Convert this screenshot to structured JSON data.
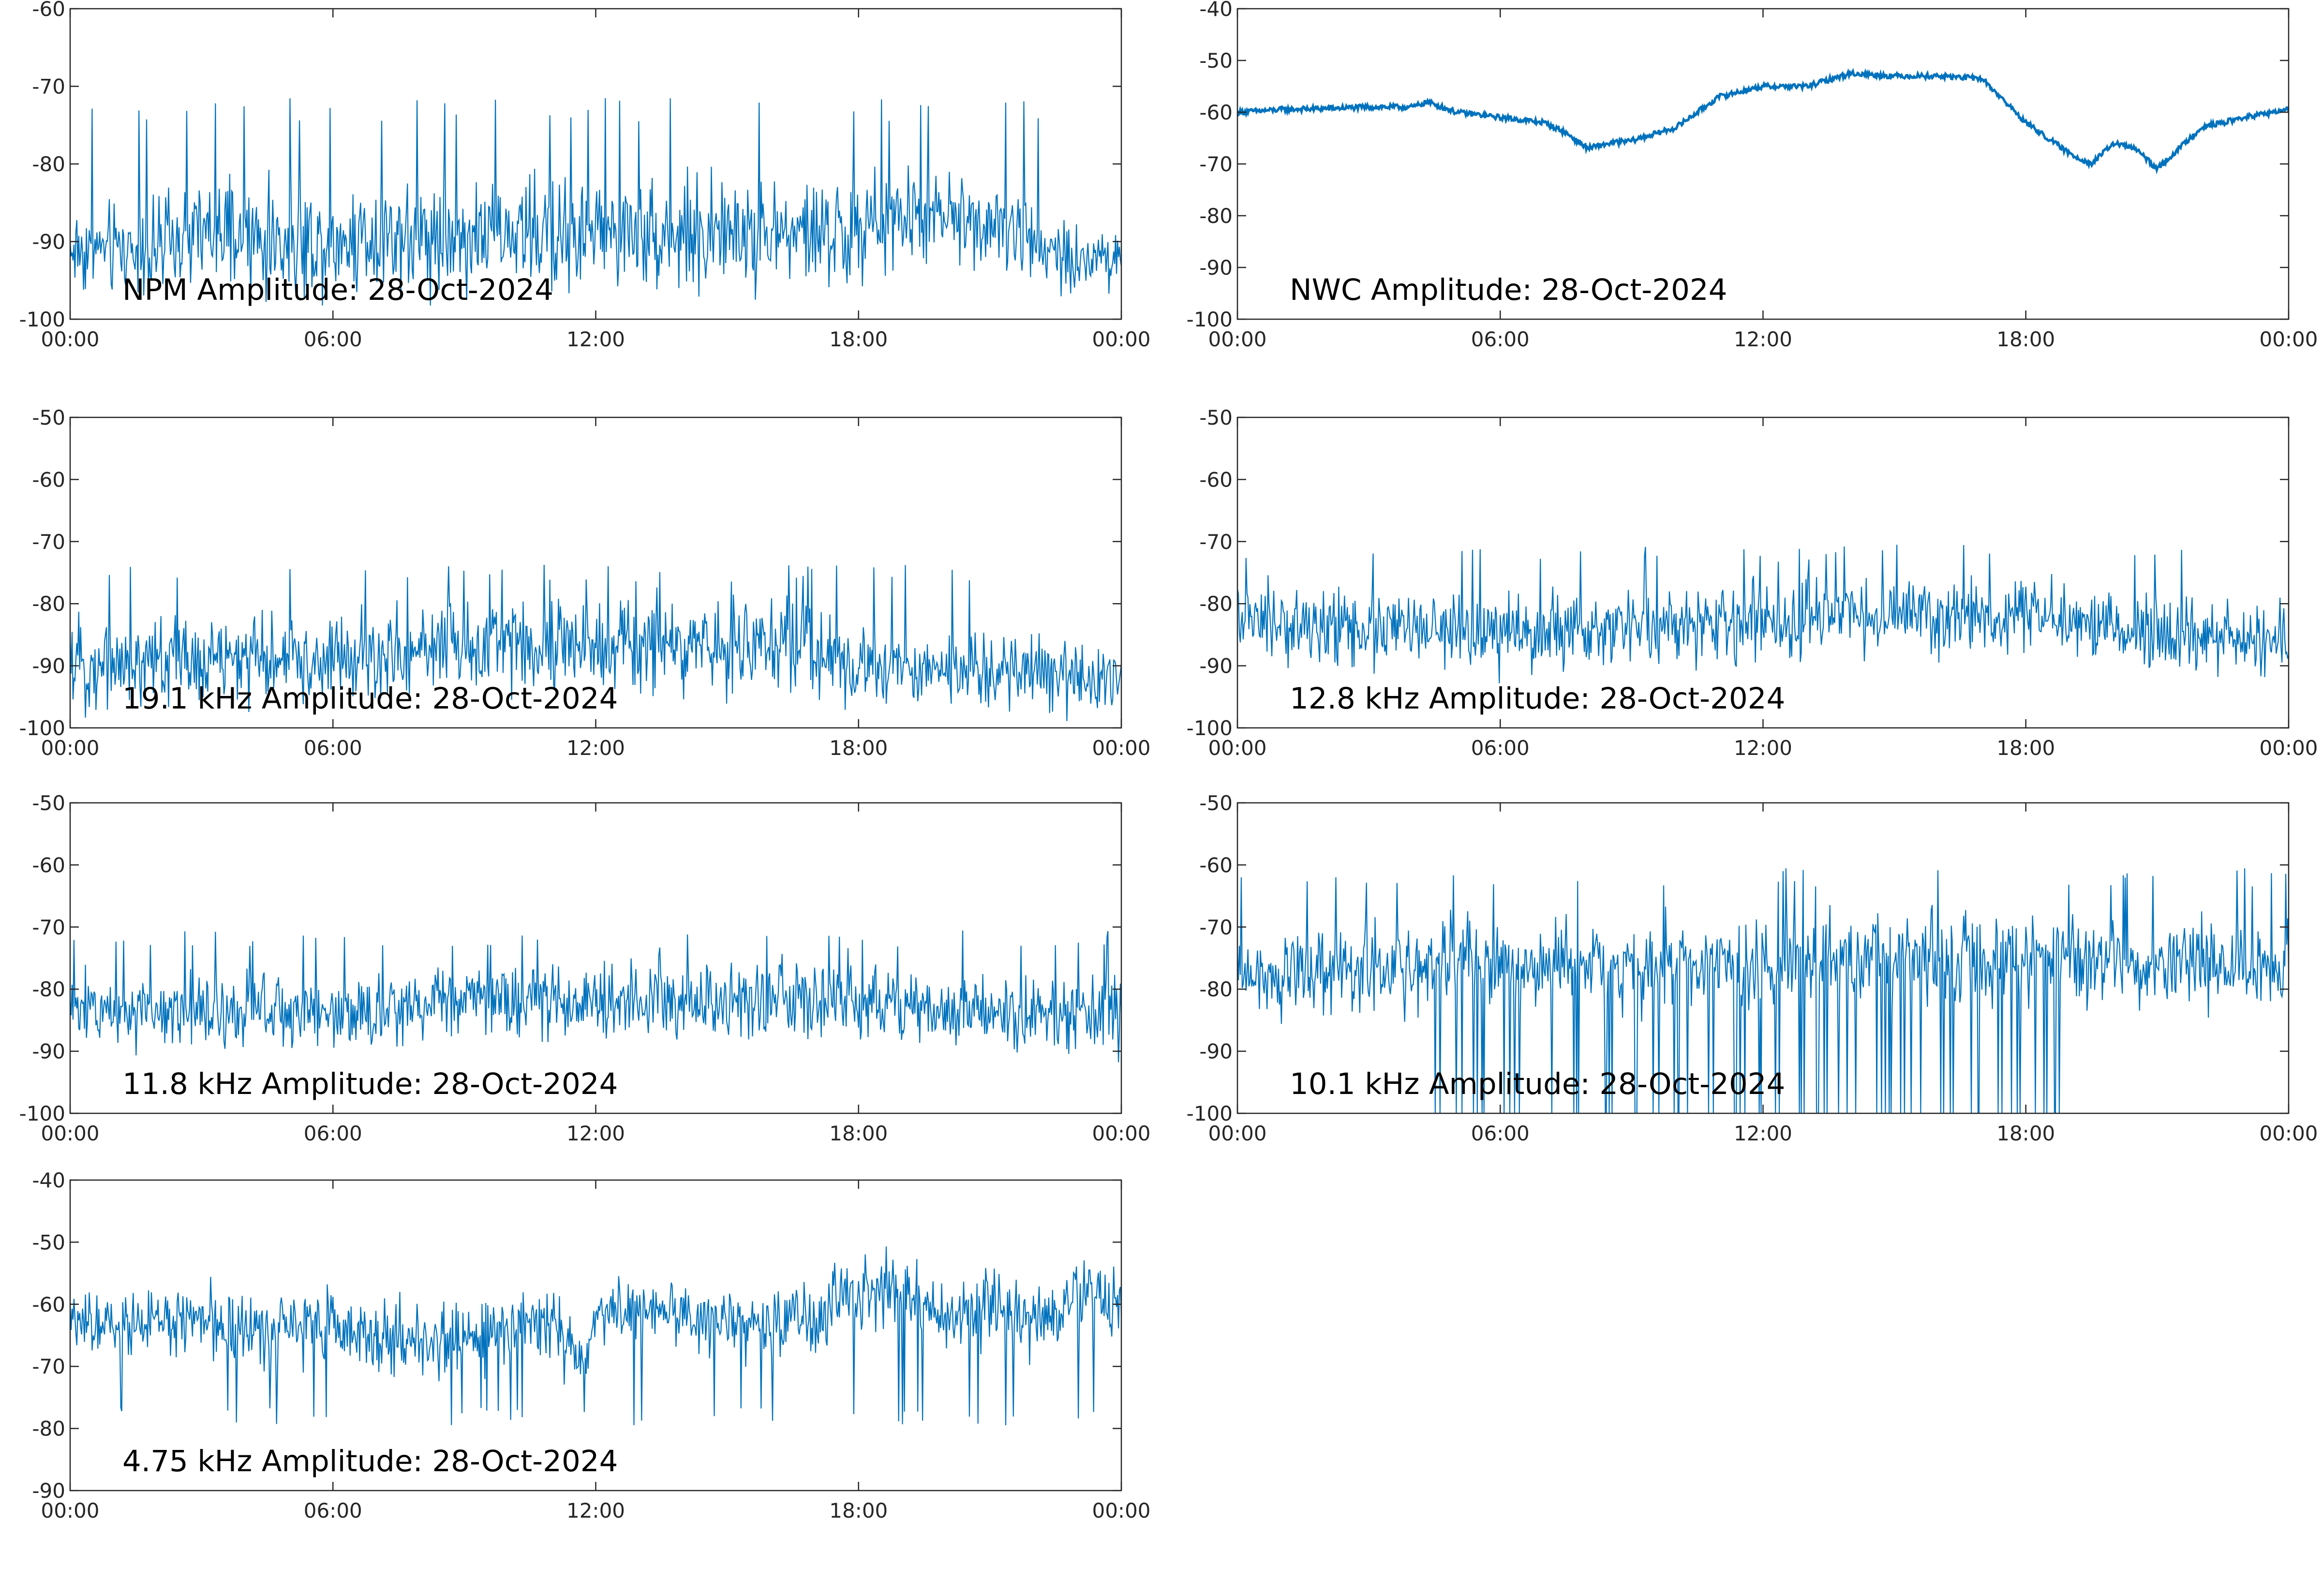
{
  "figure": {
    "line_color": "#0072BD",
    "axes_color": "#262626",
    "background": "#ffffff"
  },
  "chart_data": [
    {
      "type": "line",
      "title": "NPM Amplitude: 28-Oct-2024",
      "xlabel": "",
      "ylabel": "",
      "x_range": [
        "00:00",
        "24:00"
      ],
      "xticks": [
        "00:00",
        "06:00",
        "12:00",
        "18:00",
        "00:00"
      ],
      "ylim": [
        -100,
        -60
      ],
      "yticks": [
        -100,
        -90,
        -80,
        -70,
        -60
      ],
      "grid": false,
      "series": [
        {
          "x": [
            "00:00",
            "01:00",
            "02:00",
            "03:00",
            "04:00",
            "05:00",
            "06:00",
            "07:00",
            "08:00",
            "09:00",
            "10:00",
            "11:00",
            "12:00",
            "13:00",
            "14:00",
            "15:00",
            "16:00",
            "17:00",
            "18:00",
            "19:00",
            "20:00",
            "21:00",
            "22:00",
            "23:00",
            "24:00"
          ],
          "center": [
            -91,
            -91,
            -91,
            -89,
            -90,
            -90,
            -90,
            -89,
            -89,
            -89,
            -89,
            -89,
            -89,
            -89,
            -89,
            -89,
            -89,
            -89,
            -89,
            -87,
            -87,
            -87,
            -90,
            -92,
            -92
          ],
          "spread": [
            5,
            5,
            5,
            6,
            6,
            6,
            6,
            6,
            6,
            6,
            6,
            6,
            6,
            6,
            6,
            6,
            6,
            6,
            6,
            5,
            5,
            5,
            5,
            4,
            4
          ],
          "spike_peak": -73
        }
      ]
    },
    {
      "type": "line",
      "title": "NWC Amplitude: 28-Oct-2024",
      "xlabel": "",
      "ylabel": "",
      "x_range": [
        "00:00",
        "24:00"
      ],
      "xticks": [
        "00:00",
        "06:00",
        "12:00",
        "18:00",
        "00:00"
      ],
      "ylim": [
        -100,
        -40
      ],
      "yticks": [
        -100,
        -90,
        -80,
        -70,
        -60,
        -50,
        -40
      ],
      "grid": false,
      "series": [
        {
          "x": [
            "00:00",
            "01:00",
            "02:00",
            "03:00",
            "04:00",
            "04:20",
            "05:00",
            "06:00",
            "07:00",
            "07:30",
            "08:00",
            "08:30",
            "09:00",
            "10:00",
            "11:00",
            "12:00",
            "13:00",
            "14:00",
            "15:00",
            "16:00",
            "17:00",
            "18:00",
            "19:00",
            "19:30",
            "20:00",
            "20:30",
            "21:00",
            "21:30",
            "22:00",
            "23:00",
            "24:00"
          ],
          "center": [
            -60,
            -59.5,
            -59.3,
            -59,
            -59,
            -58,
            -60,
            -61,
            -62,
            -64,
            -67,
            -66,
            -65.5,
            -63,
            -57,
            -55,
            -55,
            -52.5,
            -53,
            -53,
            -53.5,
            -62,
            -68,
            -70,
            -66,
            -67,
            -71,
            -67,
            -63,
            -61,
            -59.5
          ],
          "spread": [
            0.5,
            0.5,
            0.5,
            0.5,
            0.5,
            0.5,
            0.5,
            0.5,
            0.5,
            0.5,
            0.5,
            0.5,
            0.5,
            0.5,
            0.5,
            0.5,
            0.5,
            0.5,
            0.5,
            0.5,
            0.5,
            0.5,
            0.5,
            0.5,
            0.5,
            0.5,
            0.5,
            0.5,
            0.5,
            0.5,
            0.5
          ]
        }
      ]
    },
    {
      "type": "line",
      "title": "19.1 kHz Amplitude: 28-Oct-2024",
      "xlabel": "",
      "ylabel": "",
      "x_range": [
        "00:00",
        "24:00"
      ],
      "xticks": [
        "00:00",
        "06:00",
        "12:00",
        "18:00",
        "00:00"
      ],
      "ylim": [
        -100,
        -50
      ],
      "yticks": [
        -100,
        -90,
        -80,
        -70,
        -60,
        -50
      ],
      "grid": false,
      "series": [
        {
          "x": [
            "00:00",
            "02:00",
            "04:00",
            "06:00",
            "07:00",
            "08:00",
            "10:00",
            "12:00",
            "14:00",
            "16:00",
            "17:00",
            "18:00",
            "20:00",
            "22:00",
            "24:00"
          ],
          "center": [
            -90,
            -89,
            -89,
            -89,
            -89,
            -87,
            -86,
            -87,
            -87,
            -86,
            -88,
            -90,
            -91,
            -91,
            -92
          ],
          "spread": [
            6,
            6,
            6,
            6,
            6,
            6,
            6,
            6,
            6,
            6,
            6,
            5,
            5,
            5,
            5
          ],
          "spike_peak": -75
        }
      ]
    },
    {
      "type": "line",
      "title": "12.8 kHz Amplitude: 28-Oct-2024",
      "xlabel": "",
      "ylabel": "",
      "x_range": [
        "00:00",
        "24:00"
      ],
      "xticks": [
        "00:00",
        "06:00",
        "12:00",
        "18:00",
        "00:00"
      ],
      "ylim": [
        -100,
        -50
      ],
      "yticks": [
        -100,
        -90,
        -80,
        -70,
        -60,
        -50
      ],
      "grid": false,
      "series": [
        {
          "x": [
            "00:00",
            "03:00",
            "06:00",
            "09:00",
            "12:00",
            "15:00",
            "18:00",
            "21:00",
            "24:00"
          ],
          "center": [
            -83,
            -84,
            -85,
            -84,
            -83,
            -82,
            -82,
            -85,
            -86
          ],
          "spread": [
            5,
            5,
            5,
            5,
            5,
            5,
            5,
            5,
            5
          ],
          "spike_peak": -72
        }
      ]
    },
    {
      "type": "line",
      "title": "11.8 kHz Amplitude: 28-Oct-2024",
      "xlabel": "",
      "ylabel": "",
      "x_range": [
        "00:00",
        "24:00"
      ],
      "xticks": [
        "00:00",
        "06:00",
        "12:00",
        "18:00",
        "00:00"
      ],
      "ylim": [
        -100,
        -50
      ],
      "yticks": [
        -100,
        -90,
        -80,
        -70,
        -60,
        -50
      ],
      "grid": false,
      "series": [
        {
          "x": [
            "00:00",
            "03:00",
            "06:00",
            "09:00",
            "12:00",
            "15:00",
            "18:00",
            "21:00",
            "24:00"
          ],
          "center": [
            -83,
            -83,
            -84,
            -82,
            -82,
            -82,
            -82,
            -84,
            -84
          ],
          "spread": [
            5,
            5,
            5,
            5,
            5,
            5,
            5,
            5,
            5
          ],
          "spike_peak": -72
        }
      ]
    },
    {
      "type": "line",
      "title": "10.1 kHz Amplitude: 28-Oct-2024",
      "xlabel": "",
      "ylabel": "",
      "x_range": [
        "00:00",
        "24:00"
      ],
      "xticks": [
        "00:00",
        "06:00",
        "12:00",
        "18:00",
        "00:00"
      ],
      "ylim": [
        -100,
        -50
      ],
      "yticks": [
        -100,
        -90,
        -80,
        -70,
        -60,
        -50
      ],
      "grid": false,
      "series": [
        {
          "x": [
            "00:00",
            "03:00",
            "06:00",
            "09:00",
            "12:00",
            "15:00",
            "18:00",
            "21:00",
            "24:00"
          ],
          "center": [
            -77,
            -77,
            -76,
            -76,
            -76,
            -75,
            -75,
            -76,
            -77
          ],
          "spread": [
            6,
            6,
            6,
            6,
            6,
            6,
            6,
            6,
            6
          ],
          "spike_peak": -62,
          "dip_window": [
            "04:00",
            "19:00"
          ],
          "dip_floor": -100
        }
      ]
    },
    {
      "type": "line",
      "title": "4.75 kHz Amplitude: 28-Oct-2024",
      "xlabel": "",
      "ylabel": "",
      "x_range": [
        "00:00",
        "24:00"
      ],
      "xticks": [
        "00:00",
        "06:00",
        "12:00",
        "18:00",
        "00:00"
      ],
      "ylim": [
        -90,
        -40
      ],
      "yticks": [
        -90,
        -80,
        -70,
        -60,
        -50,
        -40
      ],
      "grid": false,
      "series": [
        {
          "x": [
            "00:00",
            "01:00",
            "02:00",
            "03:00",
            "04:00",
            "05:00",
            "06:00",
            "07:00",
            "08:00",
            "09:00",
            "10:00",
            "11:00",
            "11:40",
            "12:00",
            "13:00",
            "14:00",
            "15:00",
            "16:00",
            "17:00",
            "18:00",
            "19:00",
            "20:00",
            "21:00",
            "22:00",
            "23:00",
            "24:00"
          ],
          "center": [
            -63,
            -64,
            -63,
            -63,
            -64,
            -64,
            -63,
            -65,
            -66,
            -66,
            -65,
            -63,
            -70,
            -62,
            -61,
            -62,
            -63,
            -63,
            -62,
            -58,
            -58,
            -62,
            -60,
            -63,
            -58,
            -60
          ],
          "spread": [
            4,
            4,
            5,
            5,
            5,
            5,
            5,
            5,
            5,
            5,
            5,
            5,
            4,
            4,
            4,
            4,
            4,
            5,
            5,
            5,
            5,
            5,
            5,
            5,
            5,
            5
          ],
          "spike_low": -78
        }
      ]
    }
  ]
}
